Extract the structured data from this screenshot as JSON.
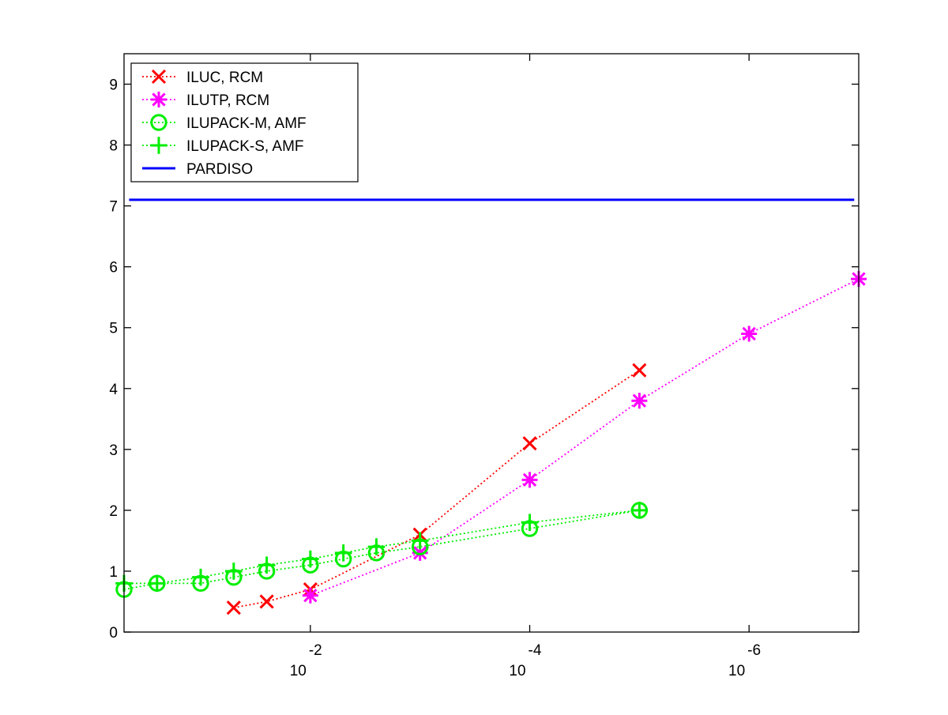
{
  "chart_data": {
    "type": "line",
    "title": "",
    "xlabel": "",
    "ylabel": "",
    "x_scale": "log",
    "x_reversed": true,
    "x_range": [
      0.5,
      1e-07
    ],
    "ylim": [
      0,
      9.5
    ],
    "y_ticks": [
      0,
      1,
      2,
      3,
      4,
      5,
      6,
      7,
      8,
      9
    ],
    "x_ticks": [
      {
        "value": 0.01,
        "base": "10",
        "exp": "-2"
      },
      {
        "value": 0.0001,
        "base": "10",
        "exp": "-4"
      },
      {
        "value": 1e-06,
        "base": "10",
        "exp": "-6"
      }
    ],
    "grid": false,
    "legend_position": "top-left",
    "series": [
      {
        "name": "ILUC, RCM",
        "color": "#ff0000",
        "marker": "x",
        "line_style": "dotted",
        "x": [
          0.05,
          0.025,
          0.01,
          0.001,
          0.0001,
          1e-05
        ],
        "y": [
          0.4,
          0.5,
          0.7,
          1.6,
          3.1,
          4.3
        ]
      },
      {
        "name": "ILUTP, RCM",
        "color": "#ff00ff",
        "marker": "asterisk",
        "line_style": "dotted",
        "x": [
          0.01,
          0.001,
          0.0001,
          1e-05,
          1e-06,
          1e-07
        ],
        "y": [
          0.6,
          1.3,
          2.5,
          3.8,
          4.9,
          5.8
        ]
      },
      {
        "name": "ILUPACK-M, AMF",
        "color": "#00ee00",
        "marker": "circle",
        "line_style": "dotted",
        "x": [
          0.5,
          0.25,
          0.1,
          0.05,
          0.025,
          0.01,
          0.005,
          0.0025,
          0.001,
          0.0001,
          1e-05
        ],
        "y": [
          0.7,
          0.8,
          0.8,
          0.9,
          1.0,
          1.1,
          1.2,
          1.3,
          1.4,
          1.7,
          2.0
        ]
      },
      {
        "name": "ILUPACK-S, AMF",
        "color": "#00ee00",
        "marker": "plus",
        "line_style": "dotted",
        "x": [
          0.5,
          0.25,
          0.1,
          0.05,
          0.025,
          0.01,
          0.005,
          0.0025,
          0.001,
          0.0001,
          1e-05
        ],
        "y": [
          0.8,
          0.8,
          0.9,
          1.0,
          1.1,
          1.2,
          1.3,
          1.4,
          1.5,
          1.8,
          2.0
        ]
      },
      {
        "name": "PARDISO",
        "color": "#0000ff",
        "marker": "none",
        "line_style": "solid",
        "x": [
          0.45,
          1.1e-07
        ],
        "y": [
          7.1,
          7.1
        ]
      }
    ]
  }
}
